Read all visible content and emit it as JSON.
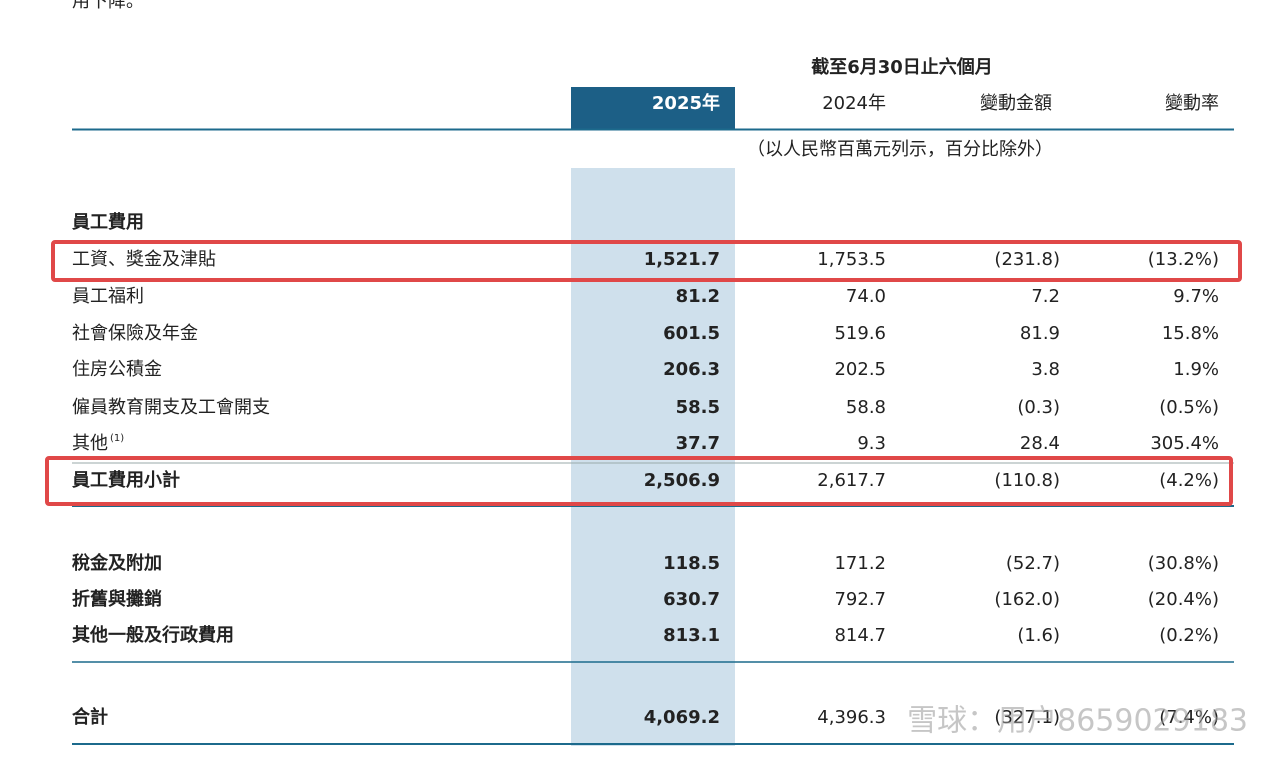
{
  "intro": "用下降。",
  "period": "截至6月30日止六個月",
  "columns": [
    "2025年",
    "2024年",
    "變動金額",
    "變動率"
  ],
  "unit_note": "（以人民幣百萬元列示，百分比除外）",
  "staff": {
    "title": "員工費用",
    "rows": [
      [
        "工資、獎金及津貼",
        "1,521.7",
        "1,753.5",
        "(231.8)",
        "(13.2%)"
      ],
      [
        "員工福利",
        "81.2",
        "74.0",
        "7.2",
        "9.7%"
      ],
      [
        "社會保險及年金",
        "601.5",
        "519.6",
        "81.9",
        "15.8%"
      ],
      [
        "住房公積金",
        "206.3",
        "202.5",
        "3.8",
        "1.9%"
      ],
      [
        "僱員教育開支及工會開支",
        "58.5",
        "58.8",
        "(0.3)",
        "(0.5%)"
      ],
      [
        "其他",
        "37.7",
        "9.3",
        "28.4",
        "305.4%"
      ]
    ],
    "footnote_mark": "(1)",
    "subtotal": [
      "員工費用小計",
      "2,506.9",
      "2,617.7",
      "(110.8)",
      "(4.2%)"
    ]
  },
  "other_rows": [
    [
      "稅金及附加",
      "118.5",
      "171.2",
      "(52.7)",
      "(30.8%)"
    ],
    [
      "折舊與攤銷",
      "630.7",
      "792.7",
      "(162.0)",
      "(20.4%)"
    ],
    [
      "其他一般及行政費用",
      "813.1",
      "814.7",
      "(1.6)",
      "(0.2%)"
    ]
  ],
  "total": [
    "合計",
    "4,069.2",
    "4,396.3",
    "(327.1)",
    "(7.4%)"
  ],
  "watermark": "雪球：用户8659029183"
}
